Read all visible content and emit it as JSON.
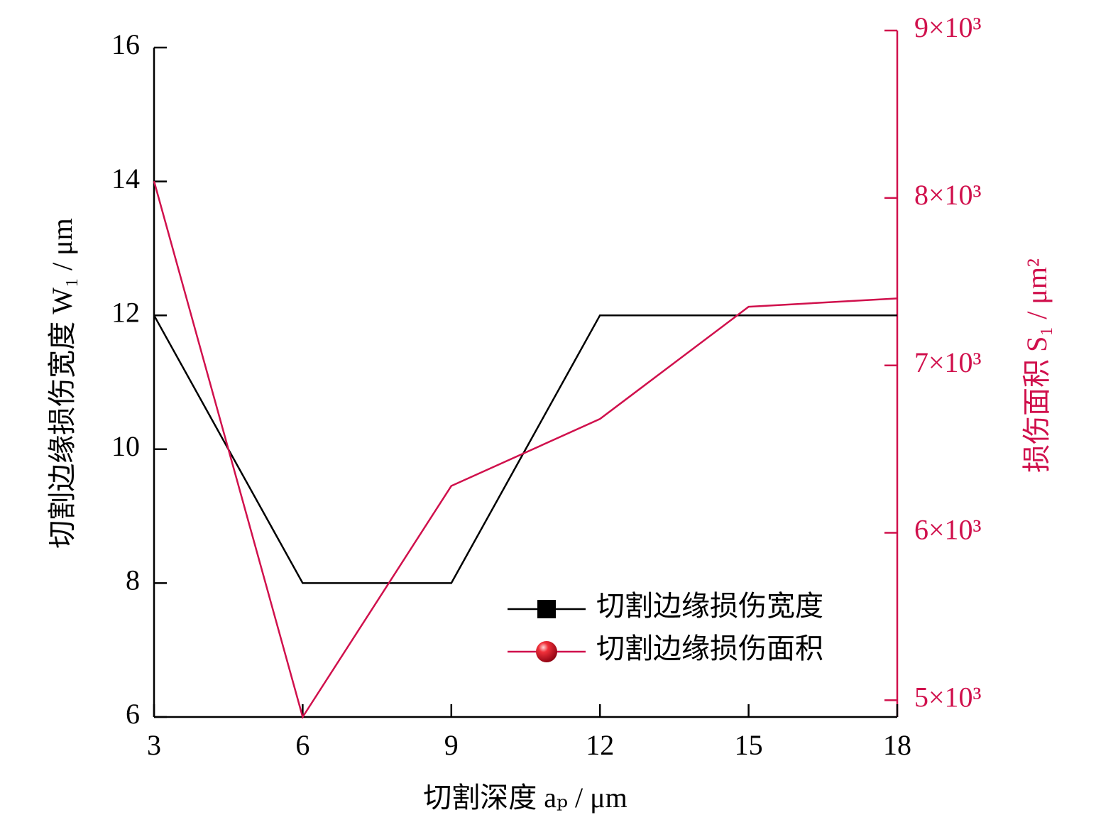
{
  "chart_data": {
    "type": "line",
    "x_label": "切割深度 aₚ / μm",
    "y_label": "切割边缘损伤宽度 W₁ / μm",
    "y2_label": "损伤面积 S₁ / μm²",
    "x": [
      3,
      6,
      9,
      12,
      15,
      18
    ],
    "xlim": [
      3,
      18
    ],
    "xticks": [
      3,
      6,
      9,
      12,
      15,
      18
    ],
    "ylim": [
      6,
      16
    ],
    "yticks": [
      6,
      8,
      10,
      12,
      14,
      16
    ],
    "y2lim": [
      4900,
      9000
    ],
    "y2ticks": [
      {
        "value": 5000,
        "label": "5×10³"
      },
      {
        "value": 6000,
        "label": "6×10³"
      },
      {
        "value": 7000,
        "label": "7×10³"
      },
      {
        "value": 8000,
        "label": "8×10³"
      },
      {
        "value": 9000,
        "label": "9×10³"
      }
    ],
    "legend": "lower right",
    "series": [
      {
        "name": "切割边缘损伤宽度",
        "color": "#000000",
        "marker": "square",
        "values": [
          12,
          8,
          8,
          12,
          12,
          12
        ]
      },
      {
        "name": "切割边缘损伤面积",
        "color": "#d0104c",
        "marker": "sphere",
        "axis": "y2",
        "values": [
          8100,
          4900,
          6280,
          6680,
          7350,
          7400
        ]
      }
    ]
  }
}
